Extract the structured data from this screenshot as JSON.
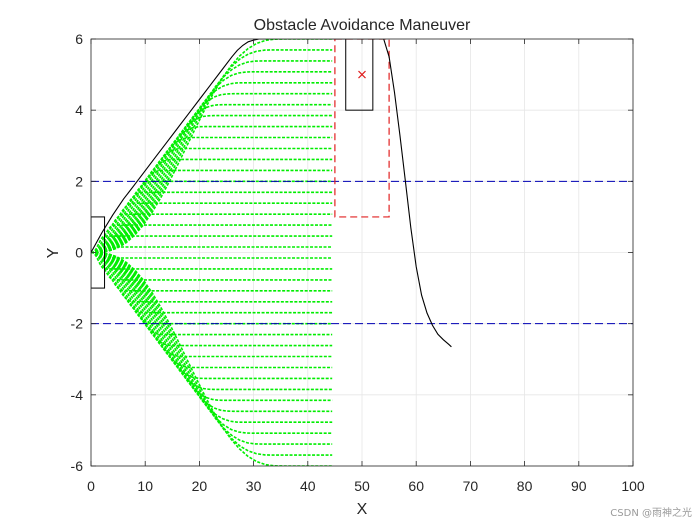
{
  "chart_data": {
    "type": "line",
    "title": "Obstacle Avoidance Maneuver",
    "xlabel": "X",
    "ylabel": "Y",
    "xlim": [
      0,
      100
    ],
    "ylim": [
      -6,
      6
    ],
    "xticks": [
      0,
      10,
      20,
      30,
      40,
      50,
      60,
      70,
      80,
      90,
      100
    ],
    "yticks": [
      -6,
      -4,
      -2,
      0,
      2,
      4,
      6
    ],
    "grid": true,
    "legend": "none",
    "colors": {
      "trajectory": "#000000",
      "candidate_paths": "#00ee00",
      "lane_boundary": "#0000b4",
      "safety_zone": "#e02020",
      "obstacle_marker": "#e02020",
      "grid": "#e6e6e6",
      "axes": "#262626"
    },
    "lane_boundaries": [
      2,
      -2
    ],
    "trajectory": {
      "x": [
        0,
        2,
        4,
        6,
        8,
        10,
        12,
        14,
        16,
        18,
        20,
        22,
        24,
        26,
        27,
        28,
        29,
        30,
        31,
        32,
        34,
        36,
        38,
        40,
        42,
        44,
        46,
        48,
        50,
        52,
        54,
        55,
        56,
        57,
        58,
        59,
        60,
        61,
        62,
        63,
        64,
        65,
        66,
        66.5
      ],
      "y": [
        0,
        0.55,
        1.05,
        1.5,
        1.9,
        2.3,
        2.7,
        3.1,
        3.5,
        3.9,
        4.3,
        4.7,
        5.1,
        5.5,
        5.68,
        5.82,
        5.92,
        5.97,
        6.0,
        6.0,
        6.0,
        6.0,
        6.0,
        6.0,
        6.0,
        6.0,
        6.0,
        6.0,
        6.0,
        6.0,
        6.0,
        5.5,
        4.5,
        3.3,
        2.0,
        0.7,
        -0.4,
        -1.2,
        -1.7,
        -2.05,
        -2.3,
        -2.45,
        -2.58,
        -2.65
      ]
    },
    "candidate_paths": {
      "x_end": 44.5,
      "count": 40
    },
    "ego_vehicle": {
      "x": [
        0,
        2.5
      ],
      "y": [
        -1,
        1
      ]
    },
    "obstacle": {
      "x": [
        47,
        52
      ],
      "y": [
        4,
        6
      ],
      "marker": [
        50,
        5
      ]
    },
    "safety_zone": {
      "x": [
        45,
        55
      ],
      "y": [
        1,
        6
      ]
    },
    "watermark": "CSDN @雨神之光"
  }
}
